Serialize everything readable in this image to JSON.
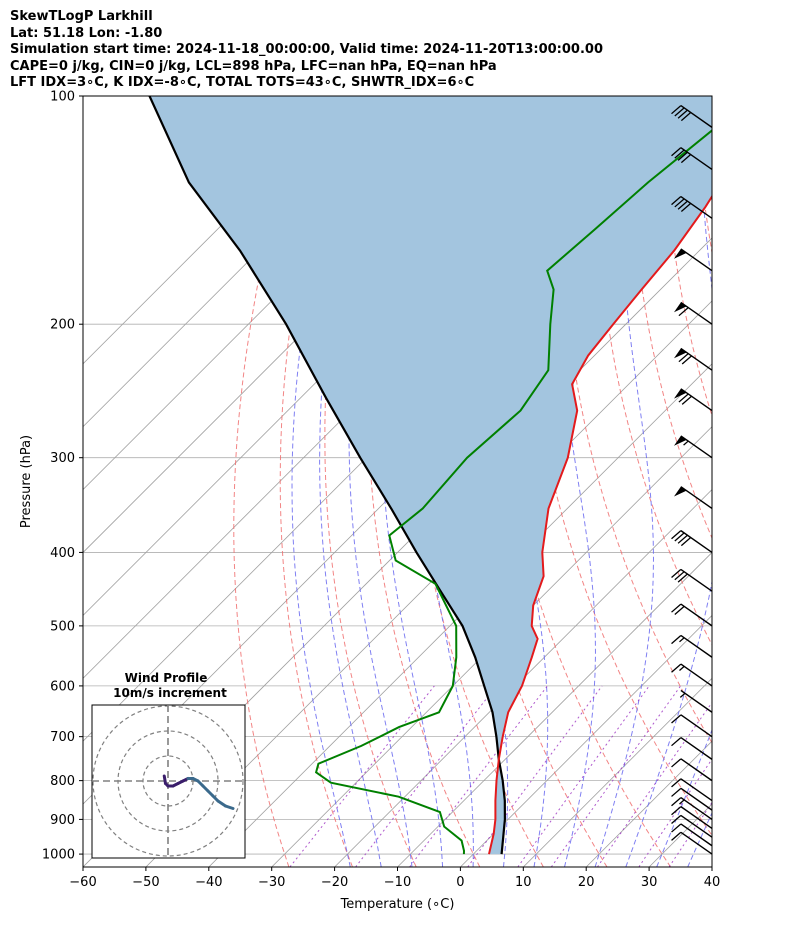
{
  "header": {
    "line1": "SkewTLogP Larkhill",
    "line2": "Lat: 51.18   Lon: -1.80",
    "line3": "Simulation start time: 2024-11-18_00:00:00, Valid time: 2024-11-20T13:00:00.00",
    "line4": "CAPE=0 j/kg, CIN=0 j/kg, LCL=898 hPa, LFC=nan hPa, EQ=nan hPa",
    "line5": "LFT IDX=3∘C, K IDX=-8∘C, TOTAL TOTS=43∘C, SHWTR_IDX=6∘C"
  },
  "colors": {
    "temperature": "#e31a1c",
    "dewpoint": "#008000",
    "parcel": "#000000",
    "shade": "#a3c5df",
    "dry_adiabat": "#f07070",
    "moist_adiabat": "#6a6af0",
    "mixing_ratio": "#9b30c0",
    "isotherm": "#a0a0a0"
  },
  "chart_data": [
    {
      "type": "line",
      "title": "",
      "xlabel": "Temperature (∘C)",
      "ylabel": "Pressure (hPa)",
      "xlim": [
        -60,
        40
      ],
      "ylim": [
        1040,
        100
      ],
      "y_scale": "log",
      "x_ticks": [
        "−60",
        "−50",
        "−40",
        "−30",
        "−20",
        "−10",
        "0",
        "10",
        "20",
        "30",
        "40"
      ],
      "y_ticks": [
        "100",
        "200",
        "300",
        "400",
        "500",
        "600",
        "700",
        "800",
        "900",
        "1000"
      ],
      "grid": true,
      "skew": "isotherms skewed 45 degrees",
      "series": [
        {
          "key": "temperature",
          "points": [
            [
              2.5,
              1000
            ],
            [
              0,
              940
            ],
            [
              -2,
              900
            ],
            [
              -5,
              850
            ],
            [
              -8,
              800
            ],
            [
              -11,
              750
            ],
            [
              -14,
              700
            ],
            [
              -17,
              650
            ],
            [
              -19,
              600
            ],
            [
              -22,
              550
            ],
            [
              -24,
              520
            ],
            [
              -27,
              500
            ],
            [
              -30,
              470
            ],
            [
              -33,
              430
            ],
            [
              -37,
              400
            ],
            [
              -43,
              350
            ],
            [
              -48,
              300
            ],
            [
              -54,
              260
            ],
            [
              -59,
              240
            ],
            [
              -61,
              220
            ],
            [
              -62,
              200
            ],
            [
              -63,
              180
            ],
            [
              -64,
              160
            ],
            [
              -66,
              140
            ],
            [
              -69,
              120
            ],
            [
              -70,
              110
            ],
            [
              -72,
              100
            ]
          ]
        },
        {
          "key": "dewpoint",
          "points": [
            [
              -1.5,
              1000
            ],
            [
              -2,
              990
            ],
            [
              -4,
              960
            ],
            [
              -9,
              920
            ],
            [
              -12,
              880
            ],
            [
              -21,
              840
            ],
            [
              -34,
              805
            ],
            [
              -38,
              780
            ],
            [
              -39,
              760
            ],
            [
              -35,
              720
            ],
            [
              -32,
              680
            ],
            [
              -28,
              650
            ],
            [
              -30,
              600
            ],
            [
              -34,
              550
            ],
            [
              -39,
              500
            ],
            [
              -49,
              440
            ],
            [
              -59,
              410
            ],
            [
              -64,
              380
            ],
            [
              -63,
              350
            ],
            [
              -64,
              300
            ],
            [
              -63,
              260
            ],
            [
              -65,
              230
            ],
            [
              -72,
              200
            ],
            [
              -77,
              180
            ],
            [
              -81,
              170
            ],
            [
              -80,
              150
            ],
            [
              -79,
              130
            ],
            [
              -77,
              110
            ],
            [
              -76,
              100
            ]
          ]
        },
        {
          "key": "parcel",
          "points": [
            [
              4.5,
              1000
            ],
            [
              -0.5,
              900
            ],
            [
              -3.5,
              850
            ],
            [
              -7,
              800
            ],
            [
              -11,
              750
            ],
            [
              -15,
              700
            ],
            [
              -19.5,
              650
            ],
            [
              -25,
              600
            ],
            [
              -31,
              550
            ],
            [
              -38,
              500
            ],
            [
              -47,
              450
            ],
            [
              -57,
              400
            ],
            [
              -68,
              350
            ],
            [
              -81,
              300
            ],
            [
              -96,
              250
            ],
            [
              -114,
              200
            ],
            [
              -133,
              160
            ],
            [
              -152,
              130
            ],
            [
              -172,
              100
            ]
          ]
        }
      ],
      "wind_barbs": [
        {
          "p": 1000,
          "flags": 0,
          "full": 1,
          "half": 0
        },
        {
          "p": 975,
          "flags": 0,
          "full": 1,
          "half": 0
        },
        {
          "p": 950,
          "flags": 0,
          "full": 1,
          "half": 0
        },
        {
          "p": 925,
          "flags": 0,
          "full": 1,
          "half": 0
        },
        {
          "p": 900,
          "flags": 0,
          "full": 1,
          "half": 1
        },
        {
          "p": 875,
          "flags": 0,
          "full": 1,
          "half": 0
        },
        {
          "p": 850,
          "flags": 0,
          "full": 1,
          "half": 0
        },
        {
          "p": 800,
          "flags": 0,
          "full": 1,
          "half": 0
        },
        {
          "p": 750,
          "flags": 0,
          "full": 1,
          "half": 0
        },
        {
          "p": 700,
          "flags": 0,
          "full": 1,
          "half": 0
        },
        {
          "p": 650,
          "flags": 0,
          "full": 0,
          "half": 1
        },
        {
          "p": 600,
          "flags": 0,
          "full": 1,
          "half": 1
        },
        {
          "p": 550,
          "flags": 0,
          "full": 1,
          "half": 1
        },
        {
          "p": 500,
          "flags": 0,
          "full": 2,
          "half": 0
        },
        {
          "p": 450,
          "flags": 0,
          "full": 3,
          "half": 0
        },
        {
          "p": 400,
          "flags": 0,
          "full": 4,
          "half": 0
        },
        {
          "p": 350,
          "flags": 1,
          "full": 0,
          "half": 0
        },
        {
          "p": 300,
          "flags": 1,
          "full": 0,
          "half": 1
        },
        {
          "p": 260,
          "flags": 1,
          "full": 2,
          "half": 0
        },
        {
          "p": 230,
          "flags": 1,
          "full": 2,
          "half": 0
        },
        {
          "p": 200,
          "flags": 1,
          "full": 1,
          "half": 0
        },
        {
          "p": 170,
          "flags": 1,
          "full": 0,
          "half": 0
        },
        {
          "p": 145,
          "flags": 0,
          "full": 4,
          "half": 0
        },
        {
          "p": 125,
          "flags": 0,
          "full": 4,
          "half": 0
        },
        {
          "p": 110,
          "flags": 0,
          "full": 4,
          "half": 0
        }
      ]
    },
    {
      "type": "line",
      "title": "Wind Profile",
      "subtitle": "10m/s increment",
      "rings": [
        10,
        20,
        30
      ],
      "hodograph": [
        [
          -1.5,
          2
        ],
        [
          -1,
          -1
        ],
        [
          0,
          -2
        ],
        [
          2,
          -2
        ],
        [
          4,
          -1
        ],
        [
          6,
          0
        ],
        [
          8,
          1
        ],
        [
          10,
          1
        ],
        [
          12,
          0
        ],
        [
          14,
          -2
        ],
        [
          16,
          -4
        ],
        [
          18,
          -6
        ],
        [
          20,
          -8
        ],
        [
          23,
          -10
        ],
        [
          26,
          -11
        ]
      ]
    }
  ]
}
